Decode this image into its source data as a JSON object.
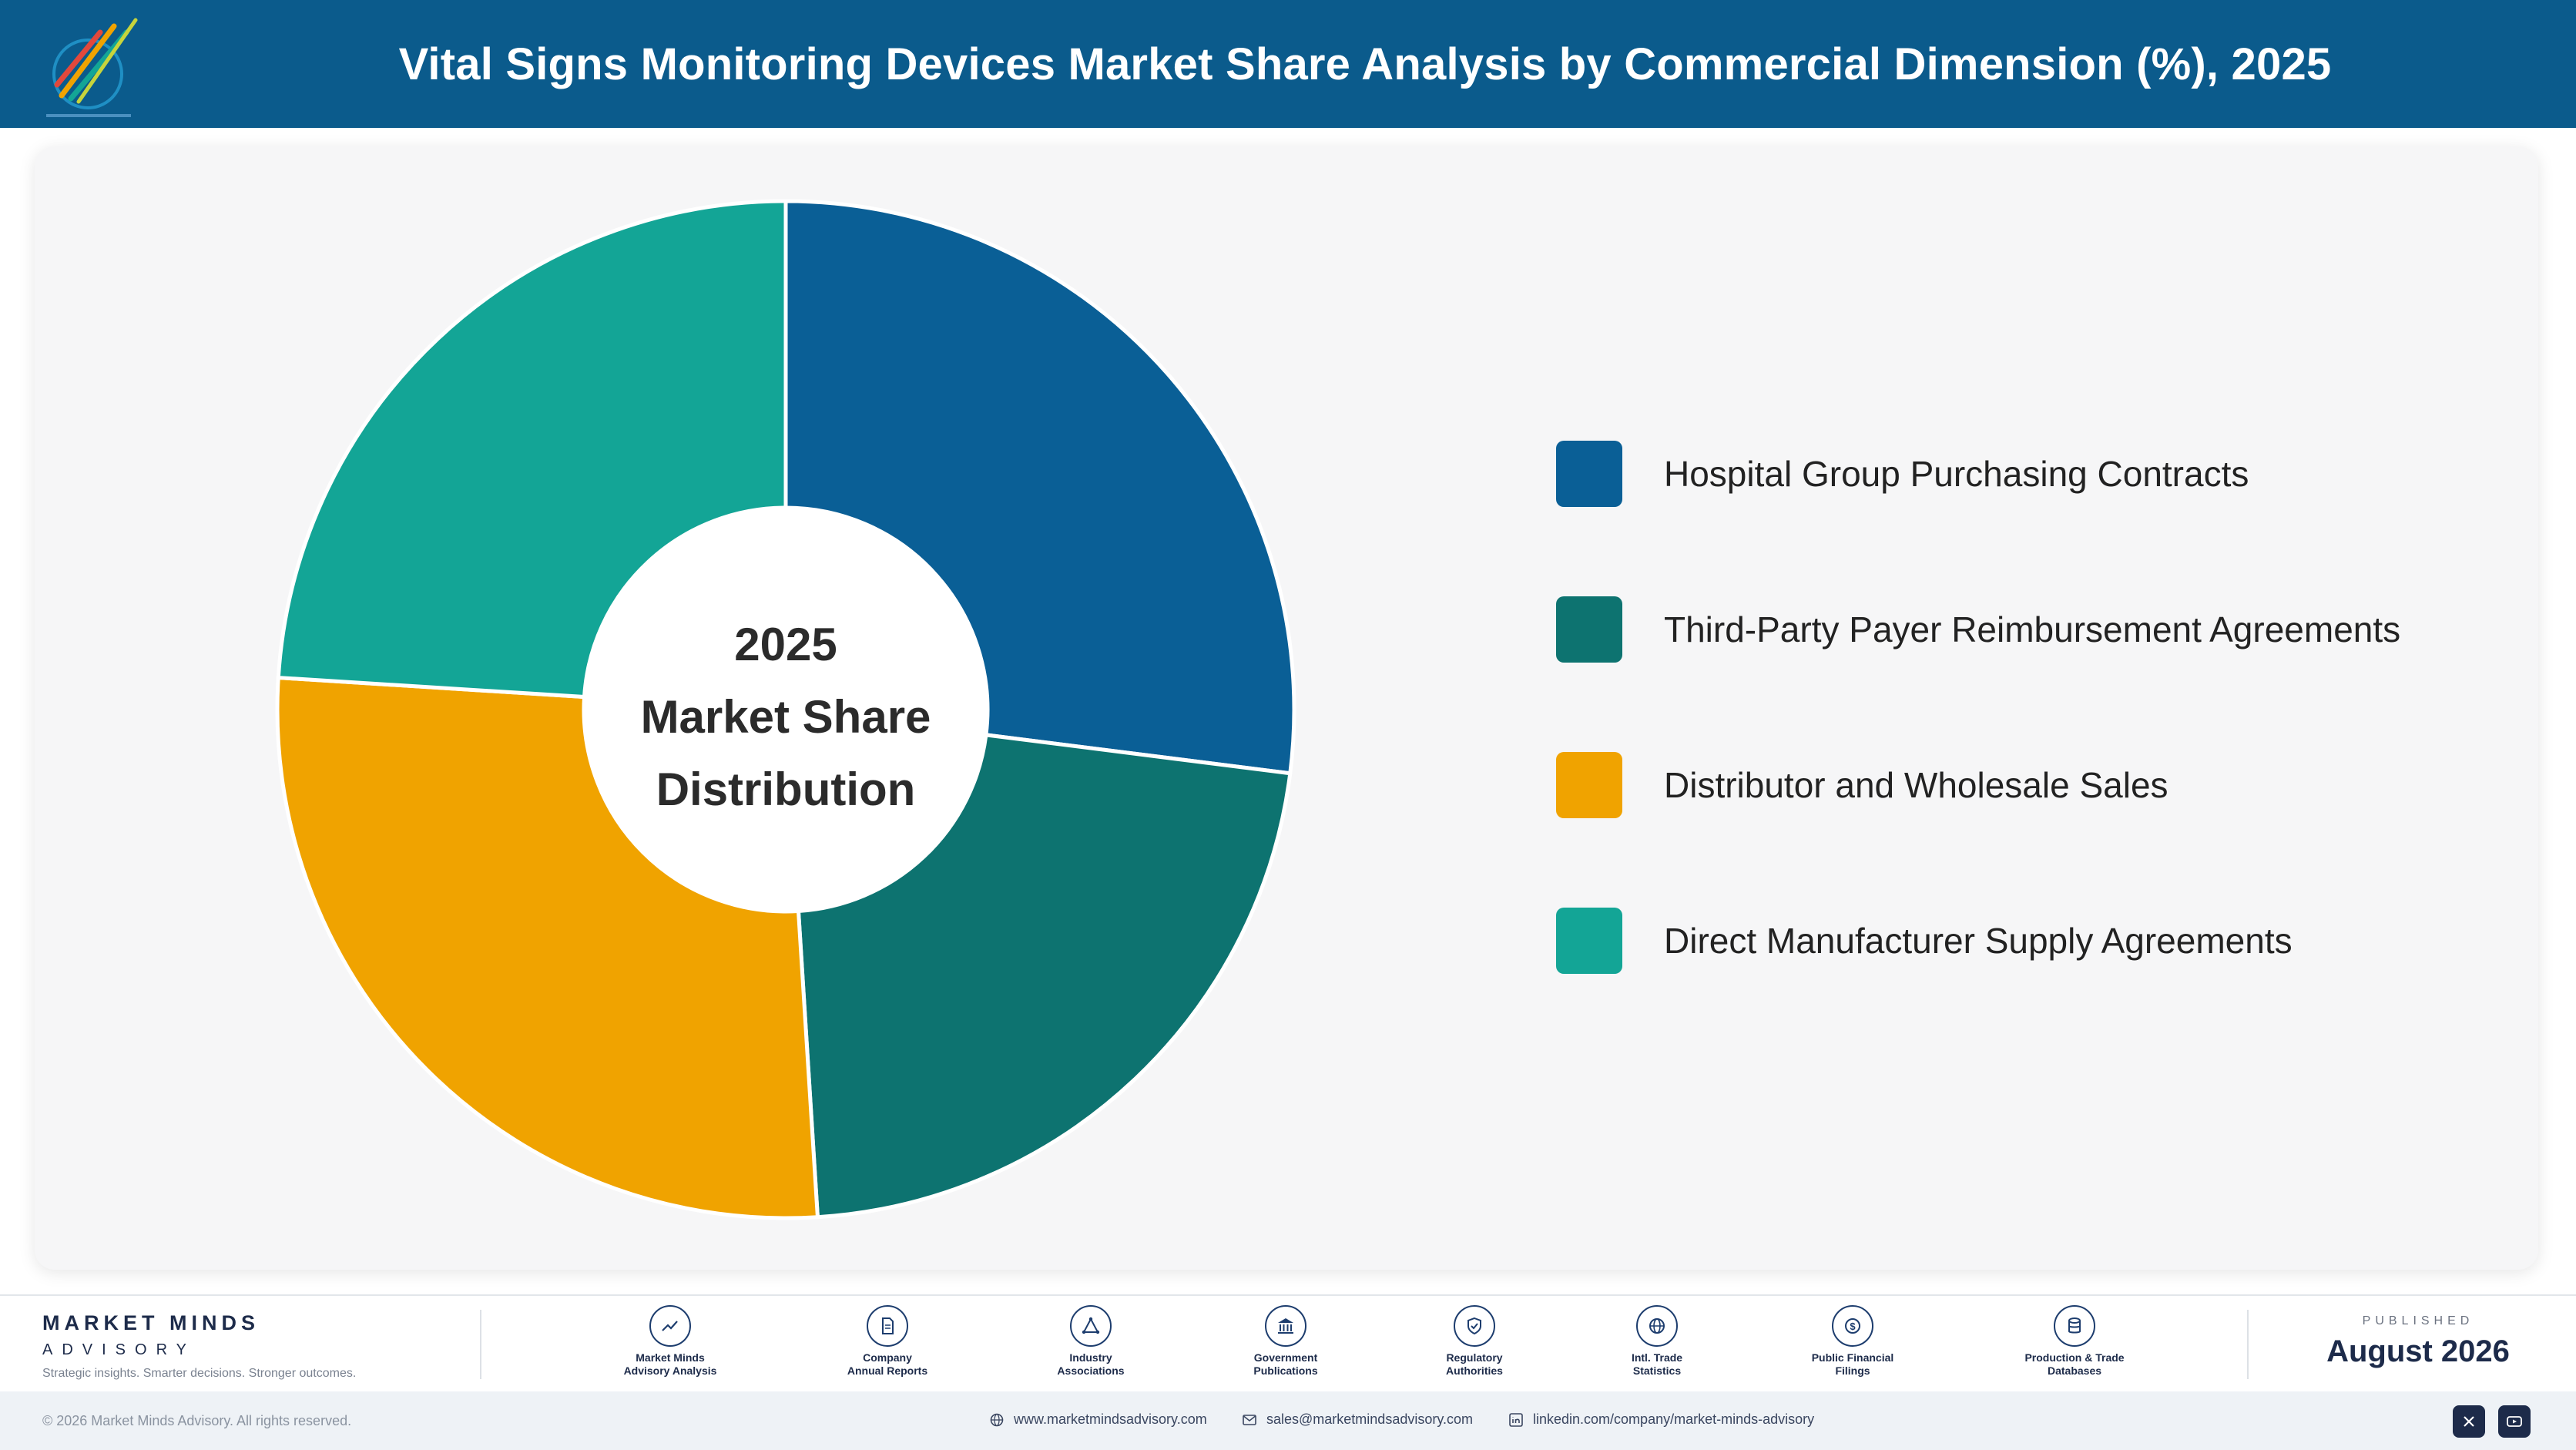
{
  "header": {
    "title": "Vital Signs Monitoring Devices Market Share Analysis by Commercial Dimension (%), 2025"
  },
  "chart_data": {
    "type": "pie",
    "title": "Vital Signs Monitoring Devices Market Share Analysis by Commercial Dimension (%), 2025",
    "center_label": [
      "2025",
      "Market Share",
      "Distribution"
    ],
    "categories": [
      "Hospital Group Purchasing Contracts",
      "Third-Party Payer Reimbursement Agreements",
      "Distributor and Wholesale Sales",
      "Direct Manufacturer Supply Agreements"
    ],
    "values": [
      27,
      22,
      27,
      24
    ],
    "unit": "%",
    "colors": [
      "#0a5f96",
      "#0d7370",
      "#f0a300",
      "#13a596"
    ],
    "legend_position": "right"
  },
  "footer": {
    "brand_name": "MARKET MINDS",
    "brand_sub": "ADVISORY",
    "tagline": "Strategic insights. Smarter decisions. Stronger outcomes.",
    "sources": [
      {
        "label_line1": "Market Minds",
        "label_line2": "Advisory Analysis",
        "icon": "trend-line-icon"
      },
      {
        "label_line1": "Company",
        "label_line2": "Annual Reports",
        "icon": "document-icon"
      },
      {
        "label_line1": "Industry",
        "label_line2": "Associations",
        "icon": "network-icon"
      },
      {
        "label_line1": "Government",
        "label_line2": "Publications",
        "icon": "government-building-icon"
      },
      {
        "label_line1": "Regulatory",
        "label_line2": "Authorities",
        "icon": "shield-check-icon"
      },
      {
        "label_line1": "Intl. Trade",
        "label_line2": "Statistics",
        "icon": "globe-icon"
      },
      {
        "label_line1": "Public Financial",
        "label_line2": "Filings",
        "icon": "dollar-coin-icon"
      },
      {
        "label_line1": "Production & Trade",
        "label_line2": "Databases",
        "icon": "database-icon"
      }
    ],
    "published_label": "PUBLISHED",
    "published_date": "August 2026",
    "copyright": "© 2026 Market Minds Advisory. All rights reserved.",
    "website": "www.marketmindsadvisory.com",
    "email": "sales@marketmindsadvisory.com",
    "linkedin": "linkedin.com/company/market-minds-advisory"
  }
}
